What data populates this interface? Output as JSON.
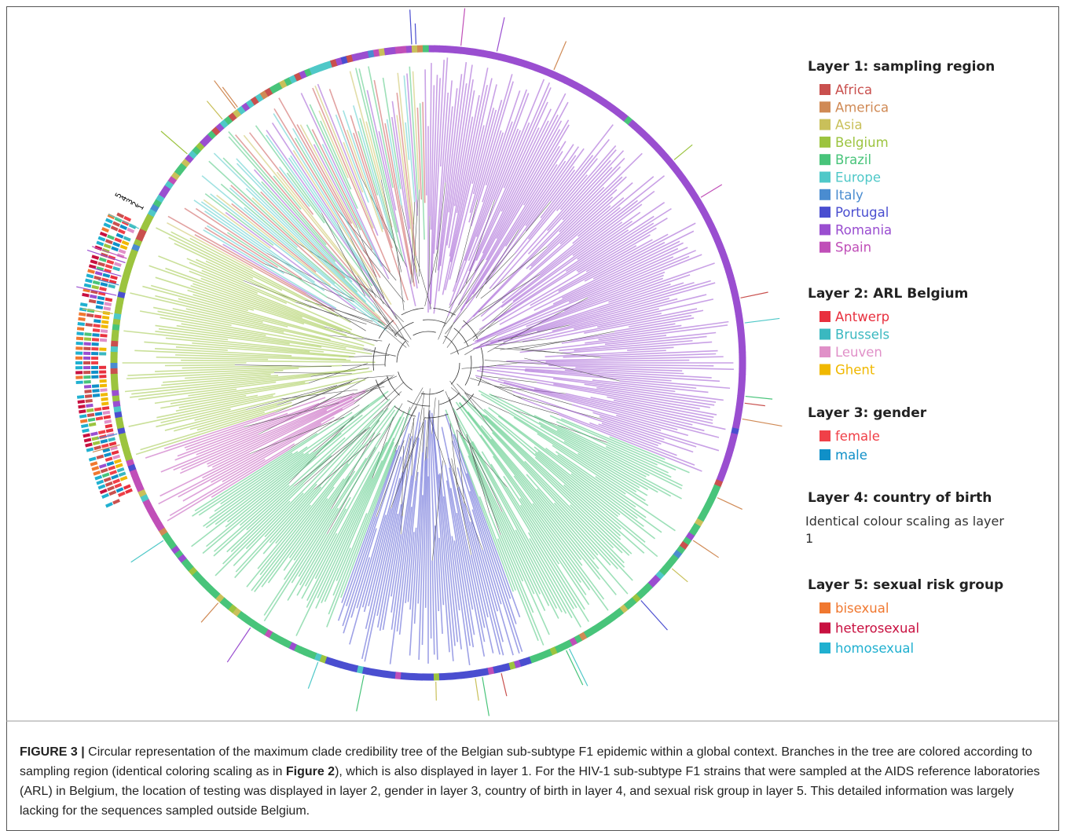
{
  "ring_labels": [
    "5",
    "4",
    "3",
    "2",
    "1"
  ],
  "legend": {
    "layers": [
      {
        "title": "Layer 1: sampling region",
        "items": [
          {
            "label": "Africa",
            "color": "#c9504e"
          },
          {
            "label": "America",
            "color": "#d08a55"
          },
          {
            "label": "Asia",
            "color": "#c9c05a"
          },
          {
            "label": "Belgium",
            "color": "#9cc43f"
          },
          {
            "label": "Brazil",
            "color": "#48c47a"
          },
          {
            "label": "Europe",
            "color": "#4fc8c8"
          },
          {
            "label": "Italy",
            "color": "#4a8cd0"
          },
          {
            "label": "Portugal",
            "color": "#4a4ed0"
          },
          {
            "label": "Romania",
            "color": "#9a4ed0"
          },
          {
            "label": "Spain",
            "color": "#c04fb8"
          }
        ]
      },
      {
        "title": "Layer 2: ARL Belgium",
        "items": [
          {
            "label": "Antwerp",
            "color": "#e8303e"
          },
          {
            "label": "Brussels",
            "color": "#3ab8c0"
          },
          {
            "label": "Leuven",
            "color": "#e090c8"
          },
          {
            "label": "Ghent",
            "color": "#f0b800"
          }
        ]
      },
      {
        "title": "Layer 3: gender",
        "items": [
          {
            "label": "female",
            "color": "#f04048"
          },
          {
            "label": "male",
            "color": "#1090c8"
          }
        ]
      },
      {
        "title": "Layer 4: country of birth",
        "note": "Identical colour scaling as layer 1"
      },
      {
        "title": "Layer 5: sexual risk group",
        "items": [
          {
            "label": "bisexual",
            "color": "#f07830"
          },
          {
            "label": "heterosexual",
            "color": "#c81040"
          },
          {
            "label": "homosexual",
            "color": "#20b0d0"
          }
        ]
      }
    ]
  },
  "caption": {
    "label": "FIGURE 3 |",
    "parts": [
      " Circular representation of the maximum clade credibility tree of the Belgian sub-subtype F1 epidemic within a global context. Branches in the tree are colored according to sampling region (identical coloring scaling as in ",
      "Figure 2",
      "), which is also displayed in layer 1. For the HIV-1 sub-subtype F1 strains that were sampled at the AIDS reference laboratories (ARL) in Belgium, the location of testing was displayed in layer 2, gender in layer 3, country of birth in layer 4, and sexual risk group in layer 5. This detailed information was largely lacking for the sequences sampled outside Belgium."
    ]
  }
}
